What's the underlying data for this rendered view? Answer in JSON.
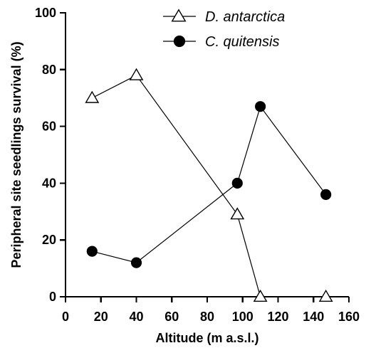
{
  "chart_data": {
    "type": "line",
    "title": "",
    "xlabel": "Altitude (m a.s.l.)",
    "ylabel": "Peripheral site seedlings survival (%)",
    "xlim": [
      0,
      160
    ],
    "ylim": [
      0,
      100
    ],
    "x_ticks": [
      0,
      20,
      40,
      60,
      80,
      100,
      120,
      140,
      160
    ],
    "y_ticks": [
      0,
      20,
      40,
      60,
      80,
      100
    ],
    "x_tick_labels": [
      "0",
      "20",
      "40",
      "60",
      "80",
      "100",
      "120",
      "140",
      "160"
    ],
    "y_tick_labels": [
      "0",
      "20",
      "40",
      "60",
      "80",
      "100"
    ],
    "grid": false,
    "legend_position": "top-right",
    "series": [
      {
        "name": "D. antarctica",
        "marker": "open-triangle",
        "color": "#000000",
        "points": [
          {
            "x": 15,
            "y": 70
          },
          {
            "x": 40,
            "y": 78
          },
          {
            "x": 97,
            "y": 29
          },
          {
            "x": 110,
            "y": 0
          },
          {
            "x": 147,
            "y": 0
          }
        ]
      },
      {
        "name": "C. quitensis",
        "marker": "filled-circle",
        "color": "#000000",
        "points": [
          {
            "x": 15,
            "y": 16
          },
          {
            "x": 40,
            "y": 12
          },
          {
            "x": 97,
            "y": 40
          },
          {
            "x": 110,
            "y": 67
          },
          {
            "x": 147,
            "y": 36
          }
        ]
      }
    ]
  }
}
